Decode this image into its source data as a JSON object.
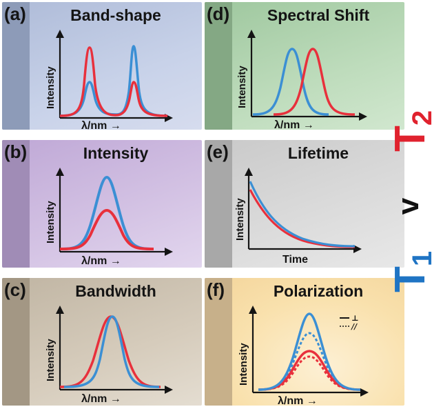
{
  "panels": [
    {
      "tag": "(a)",
      "title": "Band-shape",
      "ylabel": "Intensity",
      "xlabel": "λ/nm →"
    },
    {
      "tag": "(b)",
      "title": "Intensity",
      "ylabel": "Intensity",
      "xlabel": "λ/nm →"
    },
    {
      "tag": "(c)",
      "title": "Bandwidth",
      "ylabel": "Intensity",
      "xlabel": "λ/nm →"
    },
    {
      "tag": "(d)",
      "title": "Spectral Shift",
      "ylabel": "Intensity",
      "xlabel": "λ/nm →"
    },
    {
      "tag": "(e)",
      "title": "Lifetime",
      "ylabel": "Intensity",
      "xlabel": "Time"
    },
    {
      "tag": "(f)",
      "title": "Polarization",
      "ylabel": "Intensity",
      "xlabel": "λ/nm →",
      "legend": {
        "solid_symbol": "⊥",
        "dotted_symbol": "//"
      }
    }
  ],
  "side_label": {
    "t": "T",
    "sub1": "1",
    "v": "v",
    "sub2": "2"
  },
  "colors": {
    "blue": "#3b8fd4",
    "red": "#e8303c",
    "t1": "#1f74c4",
    "t2": "#e0222e"
  }
}
